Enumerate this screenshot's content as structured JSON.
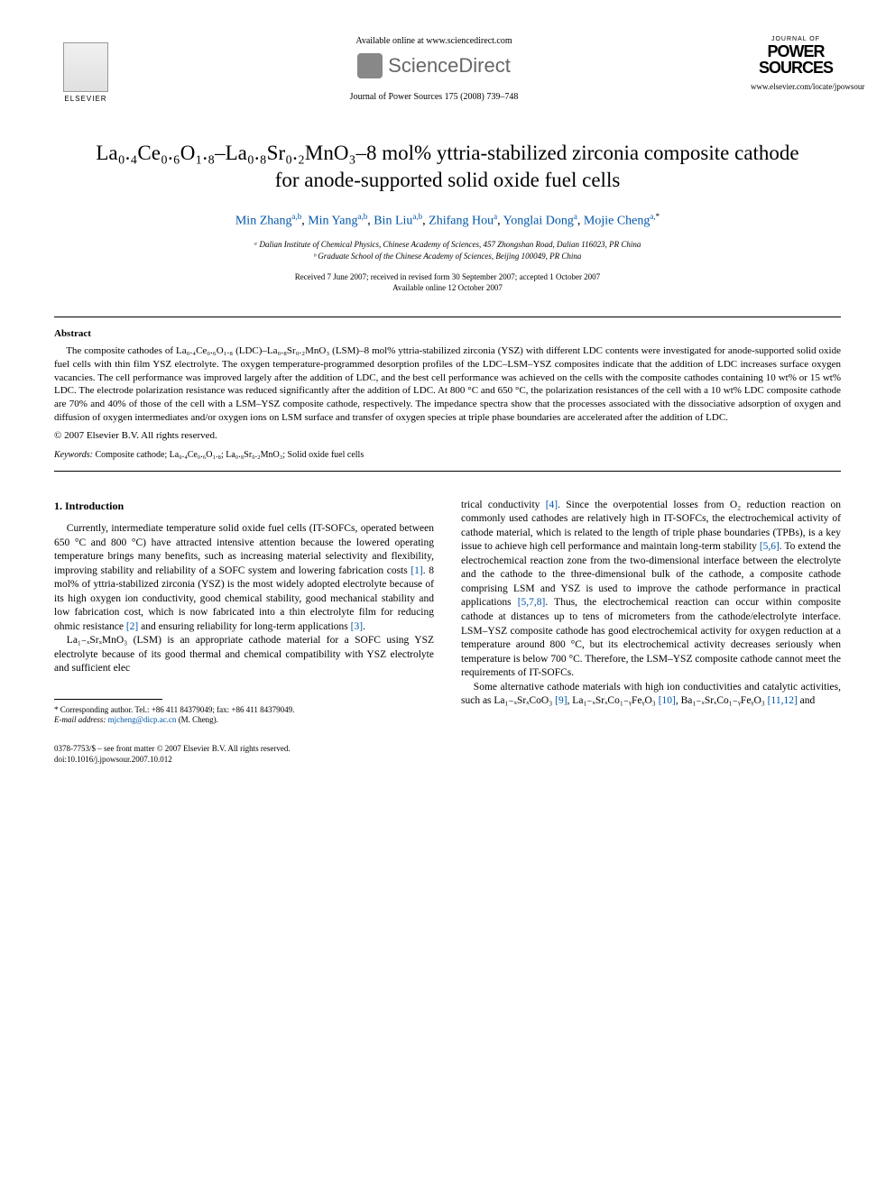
{
  "header": {
    "elsevier_label": "ELSEVIER",
    "available_online": "Available online at www.sciencedirect.com",
    "scidirect": "ScienceDirect",
    "journal_line": "Journal of Power Sources 175 (2008) 739–748",
    "journal_logo_top": "JOURNAL OF",
    "journal_logo_main1": "POWER",
    "journal_logo_main2": "SOURCES",
    "journal_url": "www.elsevier.com/locate/jpowsour"
  },
  "title": "La₀.₄Ce₀.₆O₁.₈–La₀.₈Sr₀.₂MnO₃–8 mol% yttria-stabilized zirconia composite cathode for anode-supported solid oxide fuel cells",
  "authors": {
    "a1_name": "Min Zhang",
    "a1_sup": "a,b",
    "a2_name": "Min Yang",
    "a2_sup": "a,b",
    "a3_name": "Bin Liu",
    "a3_sup": "a,b",
    "a4_name": "Zhifang Hou",
    "a4_sup": "a",
    "a5_name": "Yonglai Dong",
    "a5_sup": "a",
    "a6_name": "Mojie Cheng",
    "a6_sup": "a,",
    "a6_star": "*"
  },
  "affiliations": {
    "a": "ᵃ Dalian Institute of Chemical Physics, Chinese Academy of Sciences, 457 Zhongshan Road, Dalian 116023, PR China",
    "b": "ᵇ Graduate School of the Chinese Academy of Sciences, Beijing 100049, PR China"
  },
  "dates": {
    "received": "Received 7 June 2007; received in revised form 30 September 2007; accepted 1 October 2007",
    "available": "Available online 12 October 2007"
  },
  "abstract": {
    "heading": "Abstract",
    "text": "The composite cathodes of La₀.₄Ce₀.₆O₁.₈ (LDC)–La₀.₈Sr₀.₂MnO₃ (LSM)–8 mol% yttria-stabilized zirconia (YSZ) with different LDC contents were investigated for anode-supported solid oxide fuel cells with thin film YSZ electrolyte. The oxygen temperature-programmed desorption profiles of the LDC–LSM–YSZ composites indicate that the addition of LDC increases surface oxygen vacancies. The cell performance was improved largely after the addition of LDC, and the best cell performance was achieved on the cells with the composite cathodes containing 10 wt% or 15 wt% LDC. The electrode polarization resistance was reduced significantly after the addition of LDC. At 800 °C and 650 °C, the polarization resistances of the cell with a 10 wt% LDC composite cathode are 70% and 40% of those of the cell with a LSM–YSZ composite cathode, respectively. The impedance spectra show that the processes associated with the dissociative adsorption of oxygen and diffusion of oxygen intermediates and/or oxygen ions on LSM surface and transfer of oxygen species at triple phase boundaries are accelerated after the addition of LDC.",
    "copyright": "© 2007 Elsevier B.V. All rights reserved."
  },
  "keywords": {
    "label": "Keywords:",
    "text": " Composite cathode; La₀.₄Ce₀.₆O₁.₈; La₀.₈Sr₀.₂MnO₃; Solid oxide fuel cells"
  },
  "section1": {
    "heading": "1.  Introduction",
    "p1a": "Currently, intermediate temperature solid oxide fuel cells (IT-SOFCs, operated between 650 °C and 800 °C) have attracted intensive attention because the lowered operating temperature brings many benefits, such as increasing material selectivity and flexibility, improving stability and reliability of a SOFC system and lowering fabrication costs ",
    "ref1": "[1]",
    "p1b": ". 8 mol% of yttria-stabilized zirconia (YSZ) is the most widely adopted electrolyte because of its high oxygen ion conductivity, good chemical stability, good mechanical stability and low fabrication cost, which is now fabricated into a thin electrolyte film for reducing ohmic resistance ",
    "ref2": "[2]",
    "p1c": " and ensuring reliability for long-term applications ",
    "ref3": "[3]",
    "p1d": ".",
    "p2a": "La₁₋ₓSrₓMnO₃ (LSM) is an appropriate cathode material for a SOFC using YSZ electrolyte because of its good thermal and chemical compatibility with YSZ electrolyte and sufficient elec",
    "p2b": "trical conductivity ",
    "ref4": "[4]",
    "p2c": ". Since the overpotential losses from O₂ reduction reaction on commonly used cathodes are relatively high in IT-SOFCs, the electrochemical activity of cathode material, which is related to the length of triple phase boundaries (TPBs), is a key issue to achieve high cell performance and maintain long-term stability ",
    "ref56": "[5,6]",
    "p2d": ". To extend the electrochemical reaction zone from the two-dimensional interface between the electrolyte and the cathode to the three-dimensional bulk of the cathode, a composite cathode comprising LSM and YSZ is used to improve the cathode performance in practical applications ",
    "ref578": "[5,7,8]",
    "p2e": ". Thus, the electrochemical reaction can occur within composite cathode at distances up to tens of micrometers from the cathode/electrolyte interface. LSM–YSZ composite cathode has good electrochemical activity for oxygen reduction at a temperature around 800 °C, but its electrochemical activity decreases seriously when temperature is below 700 °C. Therefore, the LSM–YSZ composite cathode cannot meet the requirements of IT-SOFCs.",
    "p3a": "Some alternative cathode materials with high ion conductivities and catalytic activities, such as La₁₋ₓSrₓCoO₃ ",
    "ref9": "[9]",
    "p3b": ", La₁₋ₓSrₓCo₁₋ᵧFeᵧO₃ ",
    "ref10": "[10]",
    "p3c": ", Ba₁₋ₓSrₓCo₁₋ᵧFeᵧO₃ ",
    "ref1112": "[11,12]",
    "p3d": " and"
  },
  "footnote": {
    "corr": "* Corresponding author. Tel.: +86 411 84379049; fax: +86 411 84379049.",
    "email_label": "E-mail address: ",
    "email": "mjcheng@dicp.ac.cn",
    "email_suffix": " (M. Cheng)."
  },
  "footer": {
    "line1": "0378-7753/$ – see front matter © 2007 Elsevier B.V. All rights reserved.",
    "line2": "doi:10.1016/j.jpowsour.2007.10.012"
  }
}
